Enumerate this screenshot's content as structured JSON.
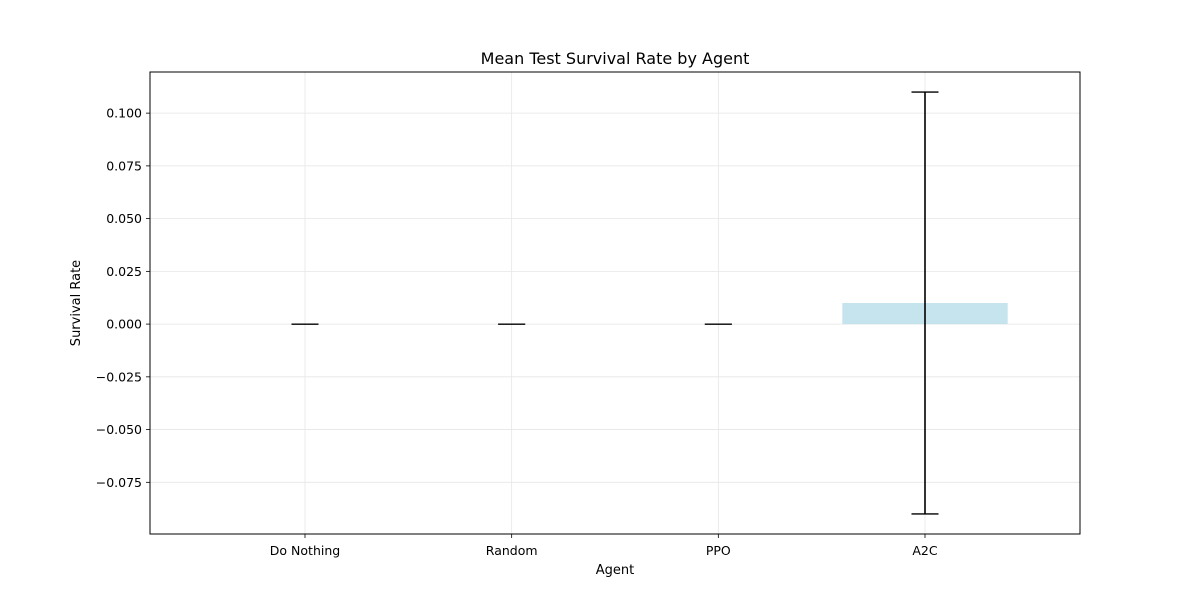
{
  "chart_data": {
    "type": "bar",
    "title": "Mean Test Survival Rate by Agent",
    "xlabel": "Agent",
    "ylabel": "Survival Rate",
    "categories": [
      "Do Nothing",
      "Random",
      "PPO",
      "A2C"
    ],
    "values": [
      0.0,
      0.0,
      0.0,
      0.01
    ],
    "error": [
      0.0,
      0.0,
      0.0,
      0.1
    ],
    "ylim": [
      -0.0995,
      0.1195
    ],
    "yticks": [
      -0.075,
      -0.05,
      -0.025,
      0.0,
      0.025,
      0.05,
      0.075,
      0.1
    ],
    "ytick_labels": [
      "−0.075",
      "−0.050",
      "−0.025",
      "0.000",
      "0.025",
      "0.050",
      "0.075",
      "0.100"
    ],
    "grid": true,
    "colors": {
      "bar": "#add8e6",
      "bar_alpha": 0.7,
      "error": "#000000",
      "grid": "#e6e6e6"
    }
  }
}
